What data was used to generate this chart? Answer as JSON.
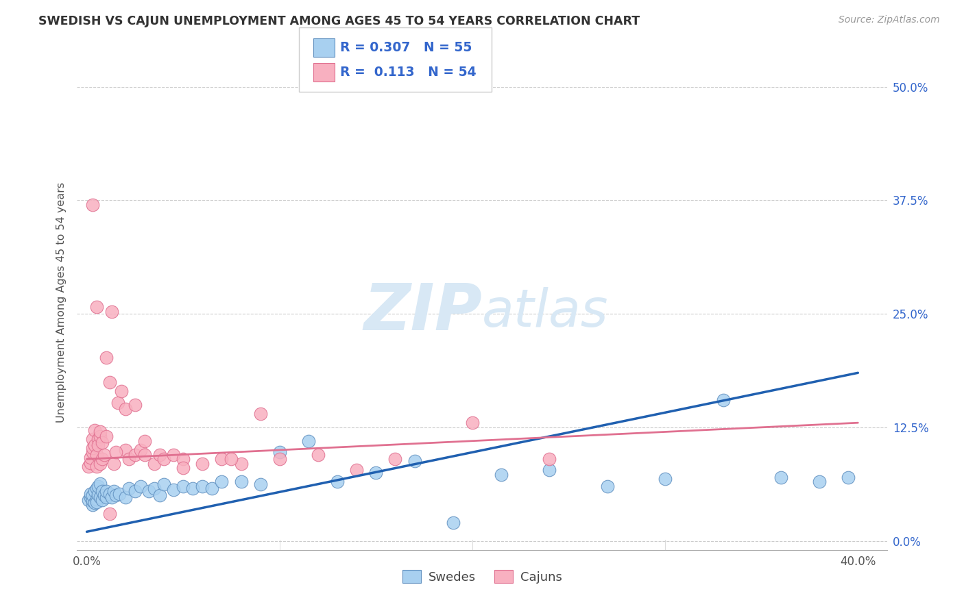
{
  "title": "SWEDISH VS CAJUN UNEMPLOYMENT AMONG AGES 45 TO 54 YEARS CORRELATION CHART",
  "source": "Source: ZipAtlas.com",
  "ylabel": "Unemployment Among Ages 45 to 54 years",
  "xlim": [
    -0.005,
    0.415
  ],
  "ylim": [
    -0.01,
    0.535
  ],
  "xtick_positions": [
    0.0,
    0.4
  ],
  "xtick_labels": [
    "0.0%",
    "40.0%"
  ],
  "yticks": [
    0.0,
    0.125,
    0.25,
    0.375,
    0.5
  ],
  "ytick_labels": [
    "0.0%",
    "12.5%",
    "25.0%",
    "37.5%",
    "50.0%"
  ],
  "R_blue": "0.307",
  "N_blue": "55",
  "R_pink": "0.113",
  "N_pink": "54",
  "blue_scatter_color": "#A8D0F0",
  "pink_scatter_color": "#F8B0C0",
  "blue_edge_color": "#6090C0",
  "pink_edge_color": "#E07090",
  "blue_line_color": "#2060B0",
  "pink_line_color": "#E07090",
  "blue_line_start_y": 0.01,
  "blue_line_end_y": 0.185,
  "pink_line_start_y": 0.09,
  "pink_line_end_y": 0.13,
  "legend_text_color": "#3366CC",
  "axis_label_color": "#555555",
  "grid_color": "#cccccc",
  "watermark_color": "#d8e8f5",
  "background_color": "#ffffff",
  "title_color": "#333333",
  "source_color": "#999999",
  "swedish_x": [
    0.001,
    0.002,
    0.002,
    0.003,
    0.003,
    0.003,
    0.004,
    0.004,
    0.005,
    0.005,
    0.005,
    0.006,
    0.006,
    0.007,
    0.007,
    0.008,
    0.008,
    0.009,
    0.01,
    0.01,
    0.012,
    0.013,
    0.014,
    0.015,
    0.017,
    0.02,
    0.022,
    0.025,
    0.028,
    0.032,
    0.035,
    0.038,
    0.04,
    0.045,
    0.05,
    0.055,
    0.06,
    0.065,
    0.07,
    0.08,
    0.09,
    0.1,
    0.115,
    0.13,
    0.15,
    0.17,
    0.19,
    0.215,
    0.24,
    0.27,
    0.3,
    0.33,
    0.36,
    0.38,
    0.395
  ],
  "swedish_y": [
    0.045,
    0.048,
    0.052,
    0.04,
    0.044,
    0.05,
    0.042,
    0.055,
    0.046,
    0.058,
    0.043,
    0.051,
    0.06,
    0.048,
    0.063,
    0.045,
    0.055,
    0.05,
    0.048,
    0.055,
    0.052,
    0.048,
    0.055,
    0.05,
    0.052,
    0.048,
    0.058,
    0.055,
    0.06,
    0.055,
    0.058,
    0.05,
    0.062,
    0.056,
    0.06,
    0.058,
    0.06,
    0.058,
    0.065,
    0.065,
    0.062,
    0.098,
    0.11,
    0.065,
    0.075,
    0.088,
    0.02,
    0.073,
    0.078,
    0.06,
    0.068,
    0.155,
    0.07,
    0.065,
    0.07
  ],
  "cajun_x": [
    0.001,
    0.002,
    0.002,
    0.003,
    0.003,
    0.003,
    0.004,
    0.004,
    0.005,
    0.005,
    0.006,
    0.006,
    0.007,
    0.007,
    0.008,
    0.009,
    0.01,
    0.012,
    0.013,
    0.014,
    0.016,
    0.018,
    0.02,
    0.022,
    0.025,
    0.028,
    0.03,
    0.035,
    0.038,
    0.04,
    0.045,
    0.05,
    0.06,
    0.07,
    0.08,
    0.09,
    0.1,
    0.12,
    0.14,
    0.16,
    0.2,
    0.24,
    0.003,
    0.005,
    0.007,
    0.008,
    0.01,
    0.012,
    0.015,
    0.02,
    0.025,
    0.03,
    0.05,
    0.075
  ],
  "cajun_y": [
    0.082,
    0.086,
    0.092,
    0.098,
    0.102,
    0.112,
    0.105,
    0.122,
    0.095,
    0.082,
    0.112,
    0.105,
    0.085,
    0.115,
    0.09,
    0.095,
    0.202,
    0.175,
    0.252,
    0.085,
    0.152,
    0.165,
    0.1,
    0.09,
    0.095,
    0.1,
    0.11,
    0.085,
    0.095,
    0.09,
    0.095,
    0.09,
    0.085,
    0.09,
    0.085,
    0.14,
    0.09,
    0.095,
    0.078,
    0.09,
    0.13,
    0.09,
    0.37,
    0.258,
    0.12,
    0.108,
    0.115,
    0.03,
    0.098,
    0.145,
    0.15,
    0.095,
    0.08,
    0.09
  ]
}
